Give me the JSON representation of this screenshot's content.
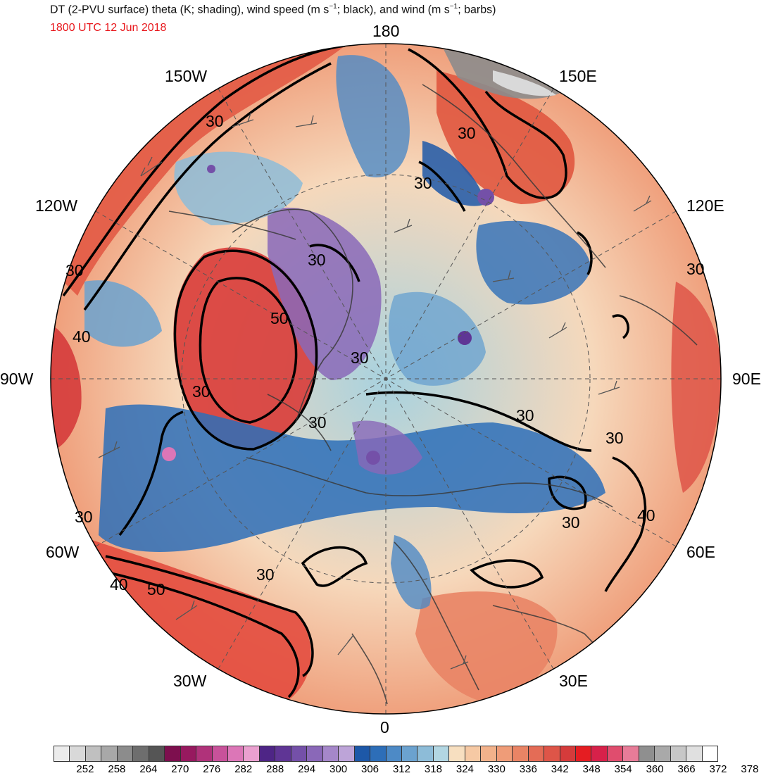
{
  "title": {
    "line1_before": "DT (2-PVU surface) theta (K; shading), wind speed (m s",
    "line1_sup1": "−1",
    "line1_middle": "; black), and wind (m s",
    "line1_sup2": "−1",
    "line1_after": "; barbs)",
    "line2": "1800 UTC 12 Jun 2018",
    "line2_color": "#e8171c"
  },
  "longitude_labels": {
    "top": "180",
    "bottom": "0",
    "left": "90W",
    "right": "90E",
    "w150": "150W",
    "e150": "150E",
    "w120": "120W",
    "e120": "120E",
    "w60": "60W",
    "e60": "60E",
    "w30": "30W",
    "e30": "30E"
  },
  "contour_labels": {
    "c1": "30",
    "c2": "30",
    "c3": "30",
    "c4": "40",
    "c5": "50",
    "c6": "30",
    "c7": "30",
    "c8": "30",
    "c9": "30",
    "c10": "30",
    "c11": "30",
    "c12": "30",
    "c13": "30",
    "c14": "30",
    "c15": "40",
    "c16": "30",
    "c17": "40",
    "c18": "50",
    "c19": "30"
  },
  "colorbar": {
    "colors": [
      "#ececec",
      "#d9d9d9",
      "#c0c0c0",
      "#a8a8a8",
      "#8c8c8c",
      "#6e6e6e",
      "#555555",
      "#7d0f4e",
      "#97195f",
      "#b0327a",
      "#c8529a",
      "#dc76b7",
      "#eaa0cf",
      "#4e2586",
      "#5f3595",
      "#7450a8",
      "#8a68b8",
      "#a587c9",
      "#bda4d8",
      "#1d58a8",
      "#2d6eb8",
      "#4d8ac6",
      "#6ba2cf",
      "#8dbcd8",
      "#b2d6e2",
      "#f7dfc0",
      "#f6c9a4",
      "#f2b28b",
      "#ef9c78",
      "#e98465",
      "#e46c56",
      "#de5548",
      "#d53b3b",
      "#e51d22",
      "#d7214a",
      "#e04d6e",
      "#e77c98",
      "#8f8f8f",
      "#a9a9a9",
      "#c7c7c7",
      "#e0e0e0",
      "#ffffff"
    ],
    "labels": [
      "252",
      "258",
      "264",
      "270",
      "276",
      "282",
      "288",
      "294",
      "300",
      "306",
      "312",
      "318",
      "324",
      "330",
      "336",
      "342",
      "348",
      "354",
      "360",
      "366",
      "372",
      "378"
    ]
  }
}
